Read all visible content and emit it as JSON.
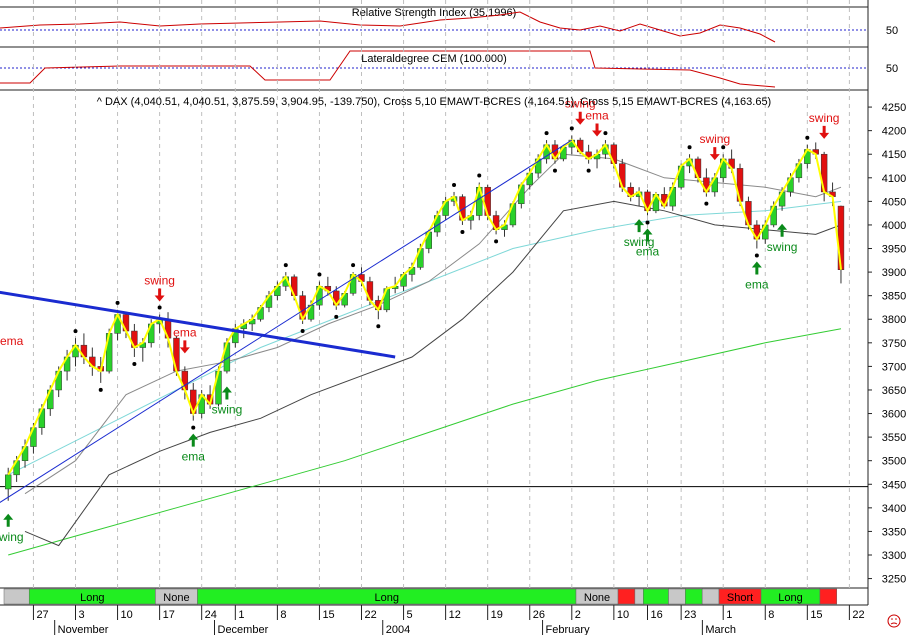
{
  "colors": {
    "up": "#2ad12a",
    "down": "#e11010",
    "price_line": "#ffff00",
    "trend": "#1a2bd0",
    "ema_short": "#7fd8d8",
    "ema_long": "#33cc33",
    "band": "#8a8a8a",
    "band_dark": "#444444",
    "rsi": "#cc0000",
    "ref": "#2020cc",
    "signal_red": "#e01010",
    "signal_green": "#0a8a1a",
    "bar_long": "#22ee22",
    "bar_short": "#ff2020",
    "bar_none": "#c8c8c8"
  },
  "chart_data": {
    "type": "candlestick",
    "title": "^ DAX (4,040.51, 4,040.51, 3,875.59, 3,904.95, -139.750), Cross 5,10 EMAWT-BCRES (4,164.51), Cross 5,15 EMAWT-BCRES (4,163.65)",
    "y_ticks": [
      "4250",
      "4200",
      "4150",
      "4100",
      "4050",
      "4000",
      "3950",
      "3900",
      "3850",
      "3800",
      "3750",
      "3700",
      "3650",
      "3600",
      "3550",
      "3500",
      "3450",
      "3400",
      "3350",
      "3300",
      "3250"
    ],
    "ylim": [
      3230,
      4265
    ],
    "reference_line": 3445,
    "sessions": 102,
    "ohlc": [
      [
        3440,
        3485,
        3415,
        3470
      ],
      [
        3470,
        3510,
        3455,
        3500
      ],
      [
        3500,
        3545,
        3485,
        3530
      ],
      [
        3530,
        3580,
        3515,
        3570
      ],
      [
        3570,
        3620,
        3555,
        3610
      ],
      [
        3610,
        3660,
        3595,
        3650
      ],
      [
        3650,
        3700,
        3635,
        3690
      ],
      [
        3690,
        3735,
        3670,
        3720
      ],
      [
        3720,
        3760,
        3700,
        3745
      ],
      [
        3745,
        3770,
        3705,
        3720
      ],
      [
        3720,
        3740,
        3680,
        3700
      ],
      [
        3700,
        3720,
        3665,
        3690
      ],
      [
        3690,
        3780,
        3685,
        3770
      ],
      [
        3770,
        3820,
        3755,
        3810
      ],
      [
        3810,
        3815,
        3760,
        3775
      ],
      [
        3775,
        3790,
        3720,
        3740
      ],
      [
        3740,
        3760,
        3710,
        3750
      ],
      [
        3750,
        3800,
        3740,
        3790
      ],
      [
        3790,
        3810,
        3770,
        3800
      ],
      [
        3800,
        3815,
        3740,
        3760
      ],
      [
        3760,
        3765,
        3680,
        3690
      ],
      [
        3690,
        3700,
        3630,
        3650
      ],
      [
        3650,
        3665,
        3585,
        3600
      ],
      [
        3600,
        3650,
        3590,
        3640
      ],
      [
        3640,
        3660,
        3610,
        3620
      ],
      [
        3620,
        3700,
        3615,
        3690
      ],
      [
        3690,
        3760,
        3685,
        3750
      ],
      [
        3750,
        3790,
        3740,
        3780
      ],
      [
        3780,
        3800,
        3760,
        3790
      ],
      [
        3790,
        3810,
        3775,
        3800
      ],
      [
        3800,
        3830,
        3795,
        3825
      ],
      [
        3825,
        3860,
        3815,
        3850
      ],
      [
        3850,
        3880,
        3840,
        3870
      ],
      [
        3870,
        3900,
        3860,
        3890
      ],
      [
        3890,
        3895,
        3840,
        3850
      ],
      [
        3850,
        3860,
        3790,
        3800
      ],
      [
        3800,
        3840,
        3795,
        3830
      ],
      [
        3830,
        3880,
        3820,
        3870
      ],
      [
        3870,
        3890,
        3850,
        3860
      ],
      [
        3860,
        3870,
        3820,
        3830
      ],
      [
        3830,
        3860,
        3825,
        3855
      ],
      [
        3855,
        3900,
        3850,
        3895
      ],
      [
        3895,
        3910,
        3870,
        3880
      ],
      [
        3880,
        3890,
        3830,
        3840
      ],
      [
        3840,
        3850,
        3800,
        3820
      ],
      [
        3820,
        3870,
        3815,
        3865
      ],
      [
        3865,
        3890,
        3855,
        3870
      ],
      [
        3870,
        3900,
        3860,
        3895
      ],
      [
        3895,
        3920,
        3880,
        3910
      ],
      [
        3910,
        3960,
        3905,
        3950
      ],
      [
        3950,
        3990,
        3940,
        3985
      ],
      [
        3985,
        4030,
        3975,
        4020
      ],
      [
        4020,
        4060,
        4010,
        4050
      ],
      [
        4050,
        4070,
        4040,
        4060
      ],
      [
        4060,
        4065,
        4000,
        4010
      ],
      [
        4010,
        4030,
        3990,
        4020
      ],
      [
        4020,
        4090,
        4010,
        4080
      ],
      [
        4080,
        4085,
        4010,
        4020
      ],
      [
        4020,
        4030,
        3980,
        3990
      ],
      [
        3990,
        4010,
        3975,
        4000
      ],
      [
        4000,
        4050,
        3995,
        4045
      ],
      [
        4045,
        4090,
        4035,
        4085
      ],
      [
        4085,
        4120,
        4075,
        4110
      ],
      [
        4110,
        4150,
        4100,
        4140
      ],
      [
        4140,
        4180,
        4130,
        4170
      ],
      [
        4170,
        4180,
        4130,
        4140
      ],
      [
        4140,
        4170,
        4135,
        4165
      ],
      [
        4165,
        4190,
        4150,
        4180
      ],
      [
        4180,
        4185,
        4150,
        4155
      ],
      [
        4155,
        4170,
        4130,
        4140
      ],
      [
        4140,
        4160,
        4120,
        4150
      ],
      [
        4150,
        4180,
        4140,
        4170
      ],
      [
        4170,
        4175,
        4120,
        4130
      ],
      [
        4130,
        4140,
        4070,
        4080
      ],
      [
        4080,
        4090,
        4050,
        4060
      ],
      [
        4060,
        4080,
        4040,
        4070
      ],
      [
        4070,
        4075,
        4020,
        4030
      ],
      [
        4030,
        4070,
        4025,
        4065
      ],
      [
        4065,
        4080,
        4035,
        4040
      ],
      [
        4040,
        4090,
        4030,
        4080
      ],
      [
        4080,
        4130,
        4075,
        4125
      ],
      [
        4125,
        4150,
        4110,
        4140
      ],
      [
        4140,
        4145,
        4090,
        4100
      ],
      [
        4100,
        4120,
        4060,
        4070
      ],
      [
        4070,
        4110,
        4060,
        4100
      ],
      [
        4100,
        4150,
        4090,
        4140
      ],
      [
        4140,
        4160,
        4110,
        4120
      ],
      [
        4120,
        4130,
        4040,
        4050
      ],
      [
        4050,
        4060,
        3990,
        4000
      ],
      [
        4000,
        4010,
        3950,
        3970
      ],
      [
        3970,
        4010,
        3960,
        4000
      ],
      [
        4000,
        4050,
        3995,
        4040
      ],
      [
        4040,
        4080,
        4030,
        4070
      ],
      [
        4070,
        4110,
        4060,
        4100
      ],
      [
        4100,
        4140,
        4090,
        4130
      ],
      [
        4130,
        4170,
        4120,
        4160
      ],
      [
        4160,
        4175,
        4140,
        4150
      ],
      [
        4150,
        4155,
        4050,
        4070
      ],
      [
        4070,
        4090,
        4040,
        4060
      ],
      [
        4040,
        4041,
        3876,
        3905
      ],
      [
        3905,
        3905,
        3905,
        3905
      ],
      [
        3905,
        3905,
        3905,
        3905
      ]
    ],
    "ema_short": [
      [
        0,
        3470
      ],
      [
        10,
        3560
      ],
      [
        20,
        3650
      ],
      [
        30,
        3740
      ],
      [
        40,
        3810
      ],
      [
        50,
        3880
      ],
      [
        60,
        3950
      ],
      [
        70,
        3990
      ],
      [
        80,
        4020
      ],
      [
        90,
        4030
      ],
      [
        99,
        4050
      ]
    ],
    "ema_long": [
      [
        0,
        3300
      ],
      [
        10,
        3350
      ],
      [
        20,
        3400
      ],
      [
        30,
        3450
      ],
      [
        40,
        3500
      ],
      [
        50,
        3560
      ],
      [
        60,
        3620
      ],
      [
        70,
        3670
      ],
      [
        80,
        3710
      ],
      [
        90,
        3750
      ],
      [
        99,
        3780
      ]
    ],
    "band_upper": [
      [
        2,
        3430
      ],
      [
        8,
        3500
      ],
      [
        14,
        3640
      ],
      [
        20,
        3690
      ],
      [
        26,
        3710
      ],
      [
        32,
        3740
      ],
      [
        38,
        3790
      ],
      [
        44,
        3830
      ],
      [
        50,
        3880
      ],
      [
        56,
        3960
      ],
      [
        62,
        4080
      ],
      [
        66,
        4150
      ],
      [
        72,
        4140
      ],
      [
        78,
        4100
      ],
      [
        84,
        4090
      ],
      [
        90,
        4080
      ],
      [
        96,
        4060
      ],
      [
        99,
        4080
      ]
    ],
    "band_lower": [
      [
        2,
        3350
      ],
      [
        6,
        3320
      ],
      [
        12,
        3470
      ],
      [
        18,
        3520
      ],
      [
        24,
        3560
      ],
      [
        30,
        3590
      ],
      [
        36,
        3640
      ],
      [
        42,
        3680
      ],
      [
        48,
        3720
      ],
      [
        54,
        3800
      ],
      [
        60,
        3900
      ],
      [
        66,
        4030
      ],
      [
        72,
        4050
      ],
      [
        78,
        4030
      ],
      [
        84,
        4000
      ],
      [
        90,
        3990
      ],
      [
        96,
        3980
      ],
      [
        99,
        4000
      ]
    ],
    "trend_lines": [
      {
        "name": "resistance",
        "from": [
          -2,
          3860
        ],
        "to": [
          46,
          3720
        ]
      },
      {
        "name": "support",
        "from": [
          -2,
          3400
        ],
        "to": [
          67,
          4180
        ]
      }
    ],
    "swing_points": [
      {
        "i": 0,
        "label": "swing",
        "dir": "up"
      },
      {
        "i": 22,
        "label": "ema",
        "dir": "up"
      },
      {
        "i": 26,
        "label": "swing",
        "dir": "up"
      },
      {
        "i": 18,
        "label": "swing",
        "dir": "down"
      },
      {
        "i": 21,
        "label": "ema",
        "dir": "down"
      },
      {
        "i": 68,
        "label": "swing",
        "dir": "down"
      },
      {
        "i": 70,
        "label": "ema",
        "dir": "down"
      },
      {
        "i": 75,
        "label": "swing",
        "dir": "up"
      },
      {
        "i": 76,
        "label": "ema",
        "dir": "up"
      },
      {
        "i": 84,
        "label": "swing",
        "dir": "down"
      },
      {
        "i": 89,
        "label": "ema",
        "dir": "up"
      },
      {
        "i": 92,
        "label": "swing",
        "dir": "up"
      },
      {
        "i": 97,
        "label": "swing",
        "dir": "down"
      }
    ],
    "rsi_panel": {
      "title": "Relative Strength Index (35.1996)",
      "tick": "50"
    },
    "lateral_panel": {
      "title": "Lateraldegree CEM (100.000)",
      "tick": "50"
    },
    "left_edge_label": "ema",
    "signal_bar": [
      {
        "label": "",
        "from": 0,
        "to": 3,
        "type": "none"
      },
      {
        "label": "Long",
        "from": 3,
        "to": 18,
        "type": "long"
      },
      {
        "label": "None",
        "from": 18,
        "to": 23,
        "type": "none"
      },
      {
        "label": "Long",
        "from": 23,
        "to": 68,
        "type": "long"
      },
      {
        "label": "None",
        "from": 68,
        "to": 73,
        "type": "none"
      },
      {
        "label": "",
        "from": 73,
        "to": 75,
        "type": "short"
      },
      {
        "label": "",
        "from": 75,
        "to": 76,
        "type": "none"
      },
      {
        "label": "",
        "from": 76,
        "to": 79,
        "type": "long"
      },
      {
        "label": "",
        "from": 79,
        "to": 81,
        "type": "none"
      },
      {
        "label": "",
        "from": 81,
        "to": 83,
        "type": "long"
      },
      {
        "label": "",
        "from": 83,
        "to": 85,
        "type": "none"
      },
      {
        "label": "Short",
        "from": 85,
        "to": 90,
        "type": "short"
      },
      {
        "label": "Long",
        "from": 90,
        "to": 97,
        "type": "long"
      },
      {
        "label": "",
        "from": 97,
        "to": 99,
        "type": "short"
      }
    ],
    "x_day_ticks": [
      {
        "i": 3,
        "label": "27"
      },
      {
        "i": 8,
        "label": "3"
      },
      {
        "i": 13,
        "label": "10"
      },
      {
        "i": 18,
        "label": "17"
      },
      {
        "i": 23,
        "label": "24"
      },
      {
        "i": 27,
        "label": "1"
      },
      {
        "i": 32,
        "label": "8"
      },
      {
        "i": 37,
        "label": "15"
      },
      {
        "i": 42,
        "label": "22"
      },
      {
        "i": 47,
        "label": "5"
      },
      {
        "i": 52,
        "label": "12"
      },
      {
        "i": 57,
        "label": "19"
      },
      {
        "i": 62,
        "label": "26"
      },
      {
        "i": 67,
        "label": "2"
      },
      {
        "i": 72,
        "label": "10"
      },
      {
        "i": 76,
        "label": "16"
      },
      {
        "i": 80,
        "label": "23"
      },
      {
        "i": 85,
        "label": "1"
      },
      {
        "i": 90,
        "label": "8"
      },
      {
        "i": 95,
        "label": "15"
      },
      {
        "i": 100,
        "label": "22"
      }
    ],
    "x_month_ticks": [
      {
        "i": 6,
        "label": "November"
      },
      {
        "i": 25,
        "label": "December"
      },
      {
        "i": 45,
        "label": "2004"
      },
      {
        "i": 64,
        "label": "February"
      },
      {
        "i": 83,
        "label": "March"
      }
    ]
  }
}
